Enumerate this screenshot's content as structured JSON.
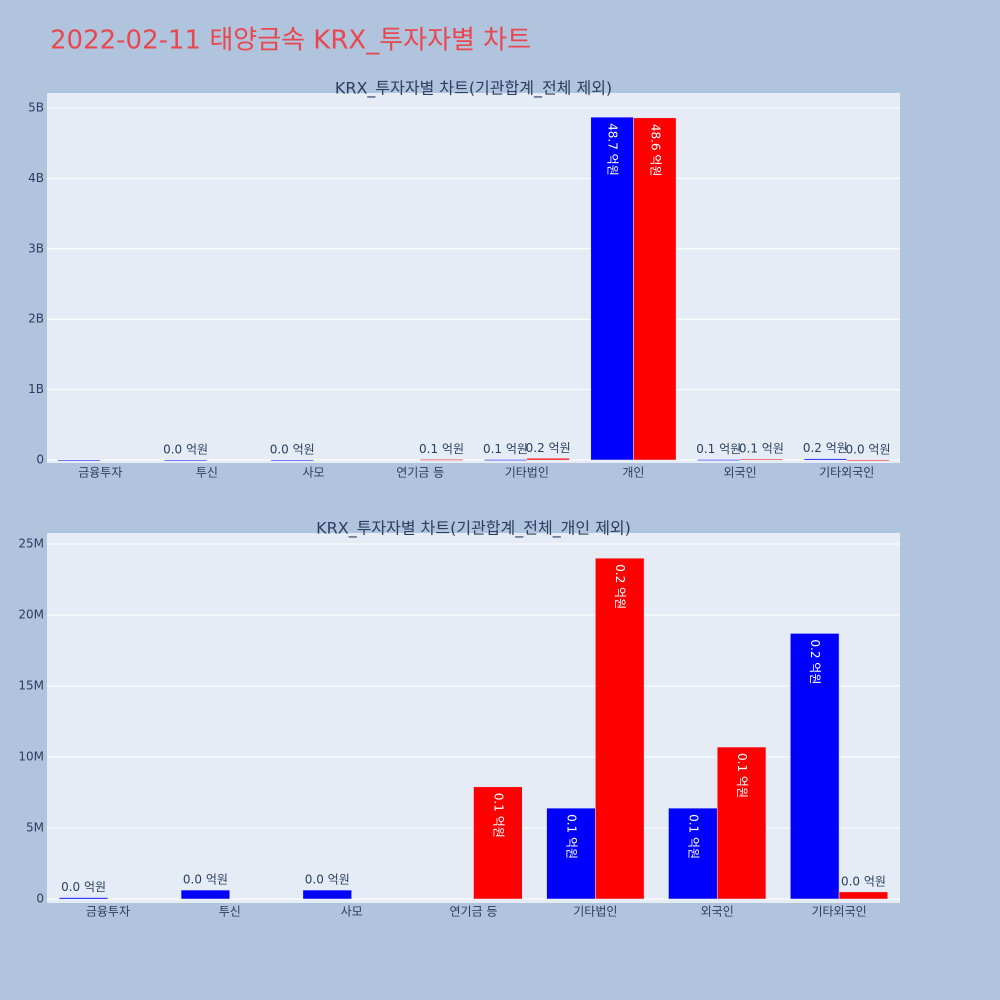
{
  "title": "2022-02-11 태양금속 KRX_투자자별 차트",
  "chart_data": [
    {
      "type": "bar",
      "title": "KRX_투자자별 차트(기관합계_전체 제외)",
      "categories": [
        "금융투자",
        "투신",
        "사모",
        "연기금 등",
        "기타법인",
        "개인",
        "외국인",
        "기타외국인"
      ],
      "series": [
        {
          "color": "#0000ff",
          "values": [
            100000,
            630000,
            630000,
            null,
            6400000,
            4870000000,
            6400000,
            18700000
          ],
          "value_labels": [
            null,
            "0.0 억원",
            "0.0 억원",
            null,
            "0.1 억원",
            "48.7 억원",
            "0.1 억원",
            "0.2 억원"
          ]
        },
        {
          "color": "#ff0000",
          "values": [
            null,
            null,
            null,
            7900000,
            24000000,
            4860000000,
            10700000,
            500000
          ],
          "value_labels": [
            null,
            null,
            null,
            "0.1 억원",
            "0.2 억원",
            "48.6 억원",
            "0.1 억원",
            "0.0 억원"
          ]
        }
      ],
      "ylim": [
        0,
        5170000000
      ],
      "yticks": [
        0,
        {
          "value": 1000000000,
          "label": "1B"
        },
        {
          "value": 2000000000,
          "label": "2B"
        },
        {
          "value": 3000000000,
          "label": "3B"
        },
        {
          "value": 4000000000,
          "label": "4B"
        },
        {
          "value": 5000000000,
          "label": "5B"
        }
      ],
      "grid": true
    },
    {
      "type": "bar",
      "title": "KRX_투자자별 차트(기관합계_전체_개인 제외)",
      "categories": [
        "금융투자",
        "투신",
        "사모",
        "연기금 등",
        "기타법인",
        "외국인",
        "기타외국인"
      ],
      "series": [
        {
          "color": "#0000ff",
          "values": [
            100000,
            630000,
            630000,
            null,
            6400000,
            6400000,
            18700000
          ],
          "value_labels": [
            "0.0 억원",
            "0.0 억원",
            "0.0 억원",
            null,
            "0.1 억원",
            "0.1 억원",
            "0.2 억원"
          ]
        },
        {
          "color": "#ff0000",
          "values": [
            null,
            null,
            null,
            7900000,
            24000000,
            10700000,
            500000
          ],
          "value_labels": [
            null,
            null,
            null,
            "0.1 억원",
            "0.2 억원",
            "0.1 억원",
            "0.0 억원"
          ]
        }
      ],
      "ylim": [
        0,
        25560000
      ],
      "yticks": [
        0,
        {
          "value": 5000000,
          "label": "5M"
        },
        {
          "value": 10000000,
          "label": "10M"
        },
        {
          "value": 15000000,
          "label": "15M"
        },
        {
          "value": 20000000,
          "label": "20M"
        },
        {
          "value": 25000000,
          "label": "25M"
        }
      ],
      "grid": true
    }
  ]
}
